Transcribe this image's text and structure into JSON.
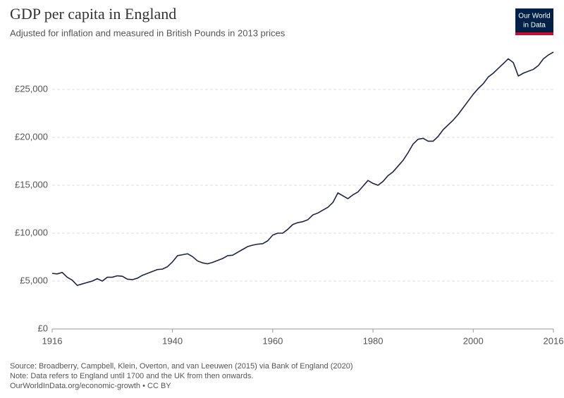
{
  "chart_data": {
    "type": "line",
    "title": "GDP per capita in England",
    "subtitle": "Adjusted for inflation and measured in British Pounds in 2013 prices",
    "logo": [
      "Our World",
      "in Data"
    ],
    "notes": [
      "Source: Broadberry, Campbell, Klein, Overton, and van Leeuwen (2015) via Bank of England (2020)",
      "Note: Data refers to England until 1700 and the UK from then onwards.",
      "OurWorldInData.org/economic-growth • CC BY"
    ],
    "color": "#1d2547",
    "grid": true,
    "x": [
      1916,
      1917,
      1918,
      1919,
      1920,
      1921,
      1922,
      1923,
      1924,
      1925,
      1926,
      1927,
      1928,
      1929,
      1930,
      1931,
      1932,
      1933,
      1934,
      1935,
      1936,
      1937,
      1938,
      1939,
      1940,
      1941,
      1942,
      1943,
      1944,
      1945,
      1946,
      1947,
      1948,
      1949,
      1950,
      1951,
      1952,
      1953,
      1954,
      1955,
      1956,
      1957,
      1958,
      1959,
      1960,
      1961,
      1962,
      1963,
      1964,
      1965,
      1966,
      1967,
      1968,
      1969,
      1970,
      1971,
      1972,
      1973,
      1974,
      1975,
      1976,
      1977,
      1978,
      1979,
      1980,
      1981,
      1982,
      1983,
      1984,
      1985,
      1986,
      1987,
      1988,
      1989,
      1990,
      1991,
      1992,
      1993,
      1994,
      1995,
      1996,
      1997,
      1998,
      1999,
      2000,
      2001,
      2002,
      2003,
      2004,
      2005,
      2006,
      2007,
      2008,
      2009,
      2010,
      2011,
      2012,
      2013,
      2014,
      2015,
      2016
    ],
    "values": [
      5800,
      5750,
      5900,
      5400,
      5100,
      4550,
      4700,
      4850,
      5000,
      5250,
      5000,
      5400,
      5400,
      5550,
      5500,
      5200,
      5150,
      5300,
      5600,
      5800,
      6000,
      6200,
      6250,
      6500,
      7000,
      7650,
      7750,
      7850,
      7550,
      7100,
      6900,
      6800,
      6950,
      7150,
      7350,
      7650,
      7700,
      8000,
      8300,
      8600,
      8750,
      8850,
      8900,
      9200,
      9800,
      10000,
      10000,
      10400,
      10900,
      11100,
      11200,
      11400,
      11900,
      12100,
      12400,
      12700,
      13200,
      14200,
      13900,
      13600,
      14000,
      14300,
      14900,
      15500,
      15200,
      15000,
      15400,
      16000,
      16400,
      17000,
      17600,
      18400,
      19300,
      19800,
      19900,
      19600,
      19600,
      20100,
      20800,
      21300,
      21800,
      22400,
      23100,
      23800,
      24500,
      25100,
      25600,
      26300,
      26700,
      27200,
      27700,
      28200,
      27800,
      26400,
      26700,
      26900,
      27100,
      27500,
      28200,
      28600,
      28900
    ],
    "xlim": [
      1916,
      2016
    ],
    "xticks": [
      1916,
      1940,
      1960,
      1980,
      2000,
      2016
    ],
    "ylim": [
      0,
      30000
    ],
    "yticks": [
      {
        "value": 0,
        "label": "£0"
      },
      {
        "value": 5000,
        "label": "£5,000"
      },
      {
        "value": 10000,
        "label": "£10,000"
      },
      {
        "value": 15000,
        "label": "£15,000"
      },
      {
        "value": 20000,
        "label": "£20,000"
      },
      {
        "value": 25000,
        "label": "£25,000"
      }
    ]
  }
}
